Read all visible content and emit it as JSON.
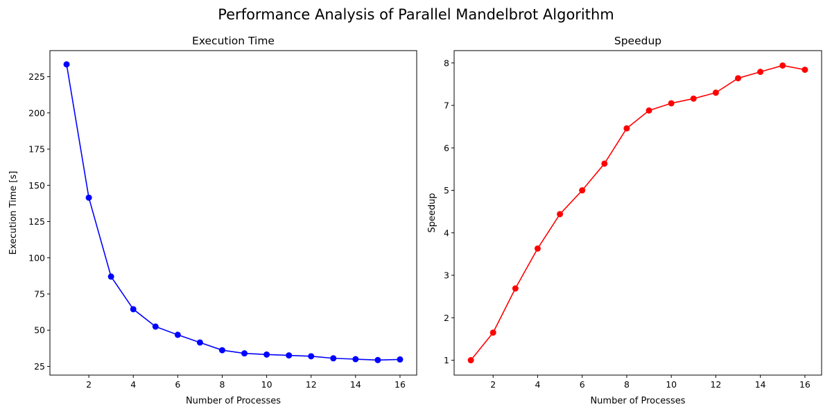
{
  "suptitle": "Performance Analysis of Parallel Mandelbrot Algorithm",
  "chart_data": [
    {
      "type": "line",
      "title": "Execution Time",
      "xlabel": "Number of Processes",
      "ylabel": "Execution Time [s]",
      "color": "#0000ff",
      "marker": "circle",
      "grid": false,
      "xlim": [
        0.25,
        16.75
      ],
      "ylim": [
        19,
        243
      ],
      "xticks": [
        2,
        4,
        6,
        8,
        10,
        12,
        14,
        16
      ],
      "yticks": [
        25,
        50,
        75,
        100,
        125,
        150,
        175,
        200,
        225
      ],
      "x": [
        1,
        2,
        3,
        4,
        5,
        6,
        7,
        8,
        9,
        10,
        11,
        12,
        13,
        14,
        15,
        16
      ],
      "series": [
        {
          "values": [
            233.5,
            141.5,
            87.0,
            64.5,
            52.5,
            46.8,
            41.5,
            36.2,
            34.0,
            33.2,
            32.6,
            32.0,
            30.6,
            30.0,
            29.4,
            29.8
          ]
        }
      ]
    },
    {
      "type": "line",
      "title": "Speedup",
      "xlabel": "Number of Processes",
      "ylabel": "Speedup",
      "color": "#ff0000",
      "marker": "circle",
      "grid": false,
      "xlim": [
        0.25,
        16.75
      ],
      "ylim": [
        0.65,
        8.29
      ],
      "xticks": [
        2,
        4,
        6,
        8,
        10,
        12,
        14,
        16
      ],
      "yticks": [
        1,
        2,
        3,
        4,
        5,
        6,
        7,
        8
      ],
      "x": [
        1,
        2,
        3,
        4,
        5,
        6,
        7,
        8,
        9,
        10,
        11,
        12,
        13,
        14,
        15,
        16
      ],
      "series": [
        {
          "values": [
            1.0,
            1.65,
            2.69,
            3.63,
            4.44,
            5.0,
            5.63,
            6.46,
            6.88,
            7.05,
            7.16,
            7.3,
            7.64,
            7.79,
            7.94,
            7.84
          ]
        }
      ]
    }
  ]
}
